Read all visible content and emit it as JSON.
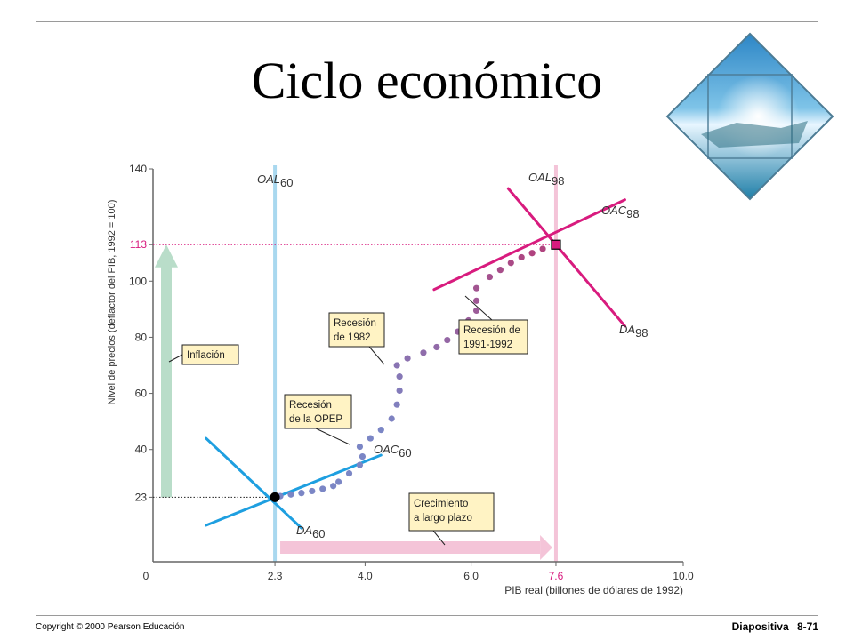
{
  "slide": {
    "title": "Ciclo económico",
    "footer_left": "Copyright © 2000 Pearson Educación",
    "footer_slide_label": "Diapositiva",
    "footer_slide_number": "8-71"
  },
  "colors": {
    "oal_blue": "#a9d8ef",
    "oal_pink": "#f4c4d8",
    "oac60": "#1e9fe0",
    "oac98": "#d81b7e",
    "dots_blue": "#7b86c5",
    "dots_pink": "#b0437f",
    "inflation_arrow": "#b9ddc9",
    "growth_arrow": "#f4c4d8",
    "callout_fill": "#fff3c4"
  },
  "chart_data": {
    "type": "scatter",
    "xlabel": "PIB real (billones de dólares de 1992)",
    "ylabel": "Nivel de precios (deflactor del PIB, 1992 = 100)",
    "xlim": [
      0,
      10.0
    ],
    "ylim": [
      0,
      140
    ],
    "x_ticks": [
      "0",
      "2.3",
      "4.0",
      "6.0",
      "7.6",
      "10.0"
    ],
    "x_tick_values": [
      0,
      2.3,
      4.0,
      6.0,
      7.6,
      10.0
    ],
    "y_ticks": [
      "23",
      "40",
      "60",
      "80",
      "100",
      "113",
      "140"
    ],
    "y_tick_values": [
      23,
      40,
      60,
      80,
      100,
      113,
      140
    ],
    "highlight_ticks": {
      "x": "7.6",
      "y": "113"
    },
    "start_point": {
      "x": 2.3,
      "y": 23
    },
    "end_point": {
      "x": 7.6,
      "y": 113
    },
    "path_points": [
      [
        2.4,
        23.4
      ],
      [
        2.6,
        24.0
      ],
      [
        2.8,
        24.5
      ],
      [
        3.0,
        25.2
      ],
      [
        3.2,
        26.0
      ],
      [
        3.4,
        27.0
      ],
      [
        3.5,
        28.5
      ],
      [
        3.7,
        31.5
      ],
      [
        3.9,
        34.5
      ],
      [
        3.95,
        37.5
      ],
      [
        3.9,
        41.0
      ],
      [
        4.1,
        44.0
      ],
      [
        4.3,
        47.0
      ],
      [
        4.5,
        51.0
      ],
      [
        4.6,
        56.0
      ],
      [
        4.65,
        61.0
      ],
      [
        4.65,
        66.0
      ],
      [
        4.6,
        70.0
      ],
      [
        4.8,
        72.5
      ],
      [
        5.1,
        74.5
      ],
      [
        5.35,
        76.5
      ],
      [
        5.55,
        79.0
      ],
      [
        5.75,
        82.0
      ],
      [
        5.95,
        86.0
      ],
      [
        6.1,
        89.5
      ],
      [
        6.1,
        93.0
      ],
      [
        6.1,
        97.5
      ],
      [
        6.35,
        101.5
      ],
      [
        6.55,
        104.0
      ],
      [
        6.75,
        106.5
      ],
      [
        6.95,
        108.5
      ],
      [
        7.15,
        110.0
      ],
      [
        7.35,
        111.5
      ]
    ],
    "lines": [
      {
        "name": "OAL",
        "sub": "60",
        "from": [
          2.3,
          0
        ],
        "to": [
          2.3,
          140
        ]
      },
      {
        "name": "OAL",
        "sub": "98",
        "from": [
          7.6,
          0
        ],
        "to": [
          7.6,
          140
        ]
      },
      {
        "name": "OAC",
        "sub": "60",
        "from": [
          1.0,
          13.0
        ],
        "to": [
          4.3,
          38.0
        ]
      },
      {
        "name": "DA",
        "sub": "60",
        "from": [
          1.0,
          44.0
        ],
        "to": [
          2.8,
          12.0
        ]
      },
      {
        "name": "OAC",
        "sub": "98",
        "from": [
          5.3,
          97.0
        ],
        "to": [
          8.9,
          129.0
        ]
      },
      {
        "name": "DA",
        "sub": "98",
        "from": [
          6.7,
          133.0
        ],
        "to": [
          8.9,
          84.0
        ]
      }
    ],
    "annotations": [
      {
        "name": "inflation",
        "text": "Inflación"
      },
      {
        "name": "opec",
        "lines": [
          "Recesión",
          "de la OPEP"
        ]
      },
      {
        "name": "r1982",
        "lines": [
          "Recesión",
          "de 1982"
        ]
      },
      {
        "name": "r1991",
        "lines": [
          "Recesión de",
          "1991-1992"
        ]
      },
      {
        "name": "growth",
        "lines": [
          "Crecimiento",
          "a largo plazo"
        ]
      }
    ]
  }
}
